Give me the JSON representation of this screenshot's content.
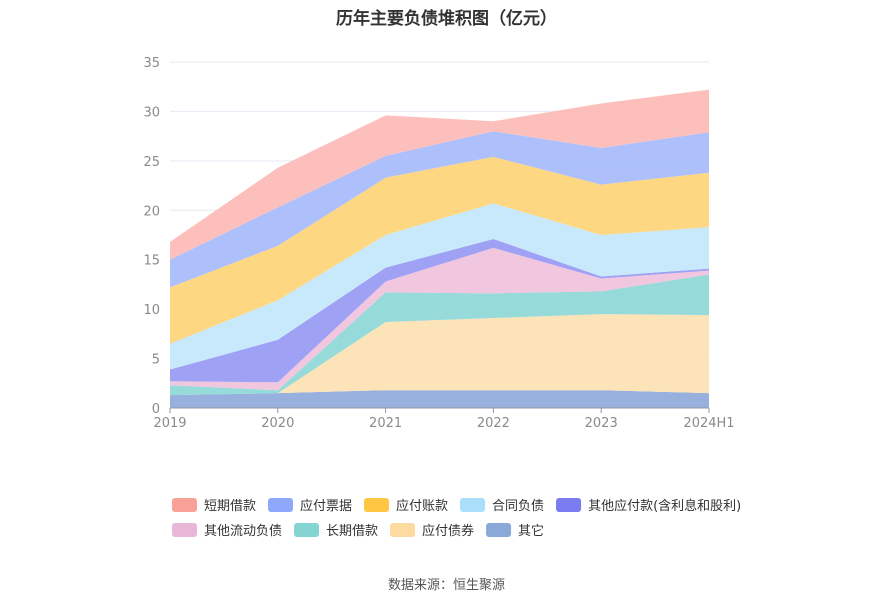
{
  "chart_data": {
    "type": "area",
    "stacked": true,
    "title": "历年主要负债堆积图（亿元）",
    "x": [
      "2019",
      "2020",
      "2021",
      "2022",
      "2023",
      "2024H1"
    ],
    "ylim": [
      0,
      35
    ],
    "yticks": [
      0,
      5,
      10,
      15,
      20,
      25,
      30,
      35
    ],
    "xlabel": "",
    "ylabel": "",
    "grid": true,
    "legend_position": "bottom",
    "series": [
      {
        "name": "其它",
        "color": "#91acdb",
        "values": [
          1.3,
          1.5,
          1.8,
          1.8,
          1.8,
          1.5
        ]
      },
      {
        "name": "应付债券",
        "color": "#fde1b4",
        "values": [
          0,
          0,
          6.9,
          7.3,
          7.7,
          7.9
        ]
      },
      {
        "name": "长期借款",
        "color": "#90d8d8",
        "values": [
          1.0,
          0.3,
          3.0,
          2.5,
          2.3,
          4.1
        ]
      },
      {
        "name": "其他流动负债",
        "color": "#f0c3dd",
        "values": [
          0.4,
          0.8,
          1.1,
          4.6,
          1.3,
          0.4
        ]
      },
      {
        "name": "其他应付款(含利息和股利)",
        "color": "#9a9cf4",
        "values": [
          1.2,
          4.3,
          1.4,
          0.9,
          0.2,
          0.2
        ]
      },
      {
        "name": "合同负债",
        "color": "#c5e8fb",
        "values": [
          2.6,
          4.0,
          3.3,
          3.6,
          4.2,
          4.2
        ]
      },
      {
        "name": "应付账款",
        "color": "#fed57c",
        "values": [
          5.7,
          5.5,
          5.8,
          4.7,
          5.1,
          5.5
        ]
      },
      {
        "name": "应付票据",
        "color": "#a9bdfb",
        "values": [
          2.8,
          3.9,
          2.2,
          2.6,
          3.7,
          4.1
        ]
      },
      {
        "name": "短期借款",
        "color": "#fdbcb7",
        "values": [
          1.8,
          4.0,
          4.1,
          1.0,
          4.5,
          4.3
        ]
      }
    ],
    "legend_order": [
      "短期借款",
      "应付票据",
      "应付账款",
      "合同负债",
      "其他应付款(含利息和股利)",
      "其他流动负债",
      "长期借款",
      "应付债券",
      "其它"
    ]
  },
  "legend_swatch_colors": {
    "短期借款": "#f9a196",
    "应付票据": "#8ea8fb",
    "应付账款": "#fec642",
    "合同负债": "#a9dffb",
    "其他应付款(含利息和股利)": "#7a7cf0",
    "其他流动负债": "#e8b6d6",
    "长期借款": "#84d4d4",
    "应付债券": "#fddba0",
    "其它": "#8aa8d8"
  },
  "source": "数据来源：恒生聚源"
}
